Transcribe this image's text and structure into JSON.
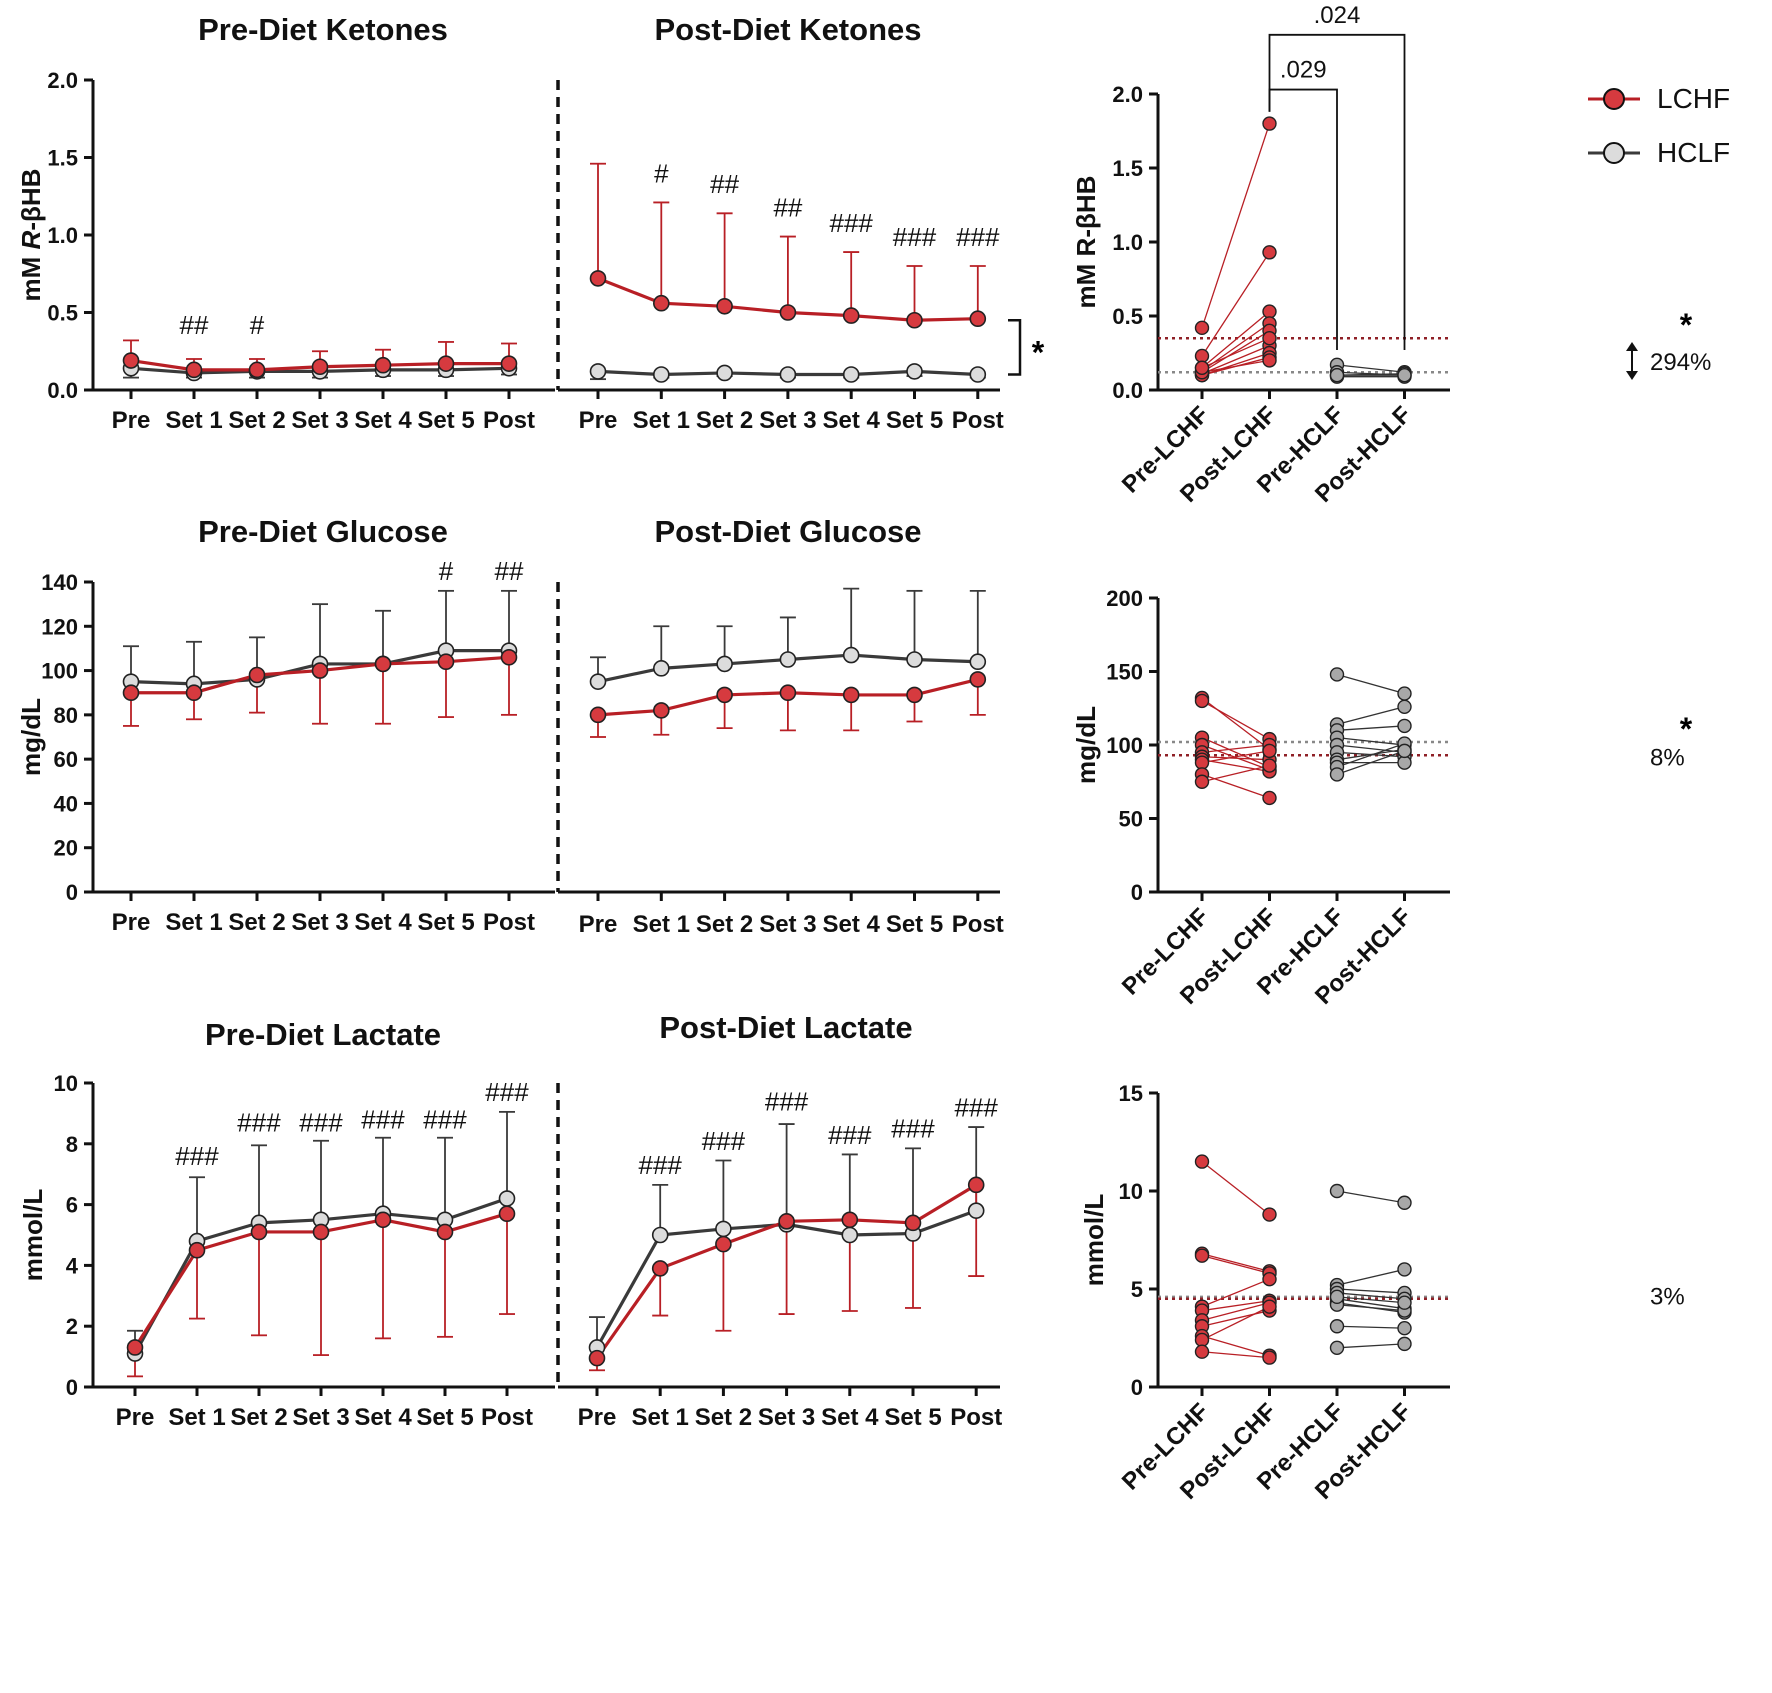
{
  "colors": {
    "lchf": "#d63a3f",
    "lchf_line": "#b81f25",
    "hclf": "#dcdcdc",
    "hclf_line": "#3a3a3a",
    "axis": "#111111"
  },
  "legend": {
    "lchf": "LCHF",
    "hclf": "HCLF"
  },
  "chart_data": [
    {
      "id": "pre_ketones",
      "type": "line",
      "title": "Pre-Diet Ketones",
      "ylabel_parts": [
        "mM ",
        "R",
        "-βHB"
      ],
      "ylim": [
        0,
        2.0
      ],
      "yticks": [
        0.0,
        0.5,
        1.0,
        1.5,
        2.0
      ],
      "yticklabels": [
        "0.0",
        "0.5",
        "1.0",
        "1.5",
        "2.0"
      ],
      "categories": [
        "Pre",
        "Set 1",
        "Set 2",
        "Set 3",
        "Set 4",
        "Set 5",
        "Post"
      ],
      "series": [
        {
          "name": "HCLF",
          "values": [
            0.14,
            0.11,
            0.12,
            0.12,
            0.13,
            0.13,
            0.14
          ],
          "err": [
            0.06,
            0.03,
            0.04,
            0.04,
            0.04,
            0.04,
            0.04
          ],
          "err_dir": "down"
        },
        {
          "name": "LCHF",
          "values": [
            0.19,
            0.13,
            0.13,
            0.15,
            0.16,
            0.17,
            0.17
          ],
          "err": [
            0.13,
            0.07,
            0.07,
            0.1,
            0.1,
            0.14,
            0.13
          ],
          "err_dir": "up"
        }
      ],
      "annotations": [
        {
          "cat": 1,
          "y": 0.36,
          "text": "##"
        },
        {
          "cat": 2,
          "y": 0.36,
          "text": "#"
        }
      ]
    },
    {
      "id": "post_ketones",
      "type": "line",
      "title": "Post-Diet Ketones",
      "ylim": [
        0,
        2.0
      ],
      "categories": [
        "Pre",
        "Set 1",
        "Set 2",
        "Set 3",
        "Set 4",
        "Set 5",
        "Post"
      ],
      "series": [
        {
          "name": "HCLF",
          "values": [
            0.12,
            0.1,
            0.11,
            0.1,
            0.1,
            0.12,
            0.1
          ],
          "err": [
            0.05,
            0.02,
            0.02,
            0.02,
            0.02,
            0.03,
            0.02
          ],
          "err_dir": "down"
        },
        {
          "name": "LCHF",
          "values": [
            0.72,
            0.56,
            0.54,
            0.5,
            0.48,
            0.45,
            0.46
          ],
          "err": [
            0.74,
            0.65,
            0.6,
            0.49,
            0.41,
            0.35,
            0.34
          ],
          "err_dir": "up"
        }
      ],
      "annotations": [
        {
          "cat": 1,
          "y": 1.34,
          "text": "#"
        },
        {
          "cat": 2,
          "y": 1.27,
          "text": "##"
        },
        {
          "cat": 3,
          "y": 1.12,
          "text": "##"
        },
        {
          "cat": 4,
          "y": 1.02,
          "text": "###"
        },
        {
          "cat": 5,
          "y": 0.93,
          "text": "###"
        },
        {
          "cat": 6,
          "y": 0.93,
          "text": "###"
        }
      ],
      "bracket": {
        "y1": 0.45,
        "y2": 0.1,
        "text": "*"
      }
    },
    {
      "id": "ketones_individual",
      "type": "scatter",
      "ylabel": "mM R-βHB",
      "ylim": [
        0,
        2.0
      ],
      "yticks": [
        0.0,
        0.5,
        1.0,
        1.5,
        2.0
      ],
      "yticklabels": [
        "0.0",
        "0.5",
        "1.0",
        "1.5",
        "2.0"
      ],
      "categories": [
        "Pre-LCHF",
        "Post-LCHF",
        "Pre-HCLF",
        "Post-HCLF"
      ],
      "pairs": [
        {
          "group": "LCHF",
          "pre": [
            0.42,
            0.23,
            0.15,
            0.13,
            0.12,
            0.11,
            0.1,
            0.1,
            0.12,
            0.15
          ],
          "post": [
            1.8,
            0.93,
            0.53,
            0.45,
            0.4,
            0.3,
            0.25,
            0.22,
            0.2,
            0.35
          ]
        },
        {
          "group": "HCLF",
          "pre": [
            0.17,
            0.12,
            0.1,
            0.09,
            0.1
          ],
          "post": [
            0.12,
            0.1,
            0.11,
            0.09,
            0.1
          ]
        }
      ],
      "mean_lines": [
        {
          "group": "LCHF",
          "y": 0.35
        },
        {
          "group": "HCLF",
          "y": 0.12
        }
      ],
      "sig_brackets": [
        {
          "from": 1,
          "to": 2,
          "y": 2.03,
          "label": ".029"
        },
        {
          "from": 1,
          "to": 3,
          "y": 2.4,
          "label": ".024"
        }
      ],
      "diff": {
        "star": "*",
        "text": "294%"
      }
    },
    {
      "id": "pre_glucose",
      "type": "line",
      "title": "Pre-Diet Glucose",
      "ylabel": "mg/dL",
      "ylim": [
        0,
        140
      ],
      "yticks": [
        0,
        20,
        40,
        60,
        80,
        100,
        120,
        140
      ],
      "yticklabels": [
        "0",
        "20",
        "40",
        "60",
        "80",
        "100",
        "120",
        "140"
      ],
      "categories": [
        "Pre",
        "Set 1",
        "Set 2",
        "Set 3",
        "Set 4",
        "Set 5",
        "Post"
      ],
      "series": [
        {
          "name": "HCLF",
          "values": [
            95,
            94,
            96,
            103,
            103,
            109,
            109
          ],
          "err": [
            16,
            19,
            19,
            27,
            24,
            27,
            27
          ],
          "err_dir": "up"
        },
        {
          "name": "LCHF",
          "values": [
            90,
            90,
            98,
            100,
            103,
            104,
            106
          ],
          "err": [
            15,
            12,
            17,
            24,
            27,
            25,
            26
          ],
          "err_dir": "down"
        }
      ],
      "annotations": [
        {
          "cat": 5,
          "y": 141,
          "text": "#"
        },
        {
          "cat": 6,
          "y": 141,
          "text": "##"
        }
      ]
    },
    {
      "id": "post_glucose",
      "type": "line",
      "title": "Post-Diet Glucose",
      "ylim": [
        0,
        140
      ],
      "categories": [
        "Pre",
        "Set 1",
        "Set 2",
        "Set 3",
        "Set 4",
        "Set 5",
        "Post"
      ],
      "series": [
        {
          "name": "HCLF",
          "values": [
            95,
            101,
            103,
            105,
            107,
            105,
            104
          ],
          "err": [
            11,
            19,
            17,
            19,
            30,
            31,
            32
          ],
          "err_dir": "up"
        },
        {
          "name": "LCHF",
          "values": [
            80,
            82,
            89,
            90,
            89,
            89,
            96
          ],
          "err": [
            10,
            11,
            15,
            17,
            16,
            12,
            16
          ],
          "err_dir": "down"
        }
      ]
    },
    {
      "id": "glucose_individual",
      "type": "scatter",
      "ylabel": "mg/dL",
      "ylim": [
        0,
        200
      ],
      "yticks": [
        0,
        50,
        100,
        150,
        200
      ],
      "yticklabels": [
        "0",
        "50",
        "100",
        "150",
        "200"
      ],
      "categories": [
        "Pre-LCHF",
        "Post-LCHF",
        "Pre-HCLF",
        "Post-HCLF"
      ],
      "pairs": [
        {
          "group": "LCHF",
          "pre": [
            132,
            130,
            105,
            100,
            95,
            92,
            90,
            88,
            80,
            75
          ],
          "post": [
            97,
            104,
            85,
            83,
            100,
            90,
            82,
            96,
            64,
            86
          ]
        },
        {
          "group": "HCLF",
          "pre": [
            148,
            114,
            110,
            105,
            100,
            95,
            90,
            88,
            85,
            80
          ],
          "post": [
            135,
            126,
            113,
            100,
            95,
            92,
            97,
            88,
            101,
            96
          ]
        }
      ],
      "mean_lines": [
        {
          "group": "HCLF",
          "y": 102
        },
        {
          "group": "LCHF",
          "y": 93
        }
      ],
      "diff": {
        "star": "*",
        "text": "8%"
      }
    },
    {
      "id": "pre_lactate",
      "type": "line",
      "title": "Pre-Diet Lactate",
      "ylabel": "mmol/L",
      "ylim": [
        0,
        10
      ],
      "yticks": [
        0,
        2,
        4,
        6,
        8,
        10
      ],
      "yticklabels": [
        "0",
        "2",
        "4",
        "6",
        "8",
        "10"
      ],
      "categories": [
        "Pre",
        "Set 1",
        "Set 2",
        "Set 3",
        "Set 4",
        "Set 5",
        "Post"
      ],
      "series": [
        {
          "name": "HCLF",
          "values": [
            1.1,
            4.8,
            5.4,
            5.5,
            5.7,
            5.5,
            6.2
          ],
          "err": [
            0.75,
            2.1,
            2.55,
            2.6,
            2.5,
            2.7,
            2.85
          ],
          "err_dir": "up"
        },
        {
          "name": "LCHF",
          "values": [
            1.3,
            4.5,
            5.1,
            5.1,
            5.5,
            5.1,
            5.7
          ],
          "err": [
            0.95,
            2.25,
            3.4,
            4.05,
            3.9,
            3.45,
            3.3
          ],
          "err_dir": "down"
        }
      ],
      "annotations": [
        {
          "cat": 1,
          "y": 7.3,
          "text": "###"
        },
        {
          "cat": 2,
          "y": 8.4,
          "text": "###"
        },
        {
          "cat": 3,
          "y": 8.4,
          "text": "###"
        },
        {
          "cat": 4,
          "y": 8.5,
          "text": "###"
        },
        {
          "cat": 5,
          "y": 8.5,
          "text": "###"
        },
        {
          "cat": 6,
          "y": 9.4,
          "text": "###"
        }
      ]
    },
    {
      "id": "post_lactate",
      "type": "line",
      "title": "Post-Diet Lactate",
      "ylim": [
        0,
        10
      ],
      "categories": [
        "Pre",
        "Set 1",
        "Set 2",
        "Set 3",
        "Set 4",
        "Set 5",
        "Post"
      ],
      "series": [
        {
          "name": "HCLF",
          "values": [
            1.3,
            5.0,
            5.2,
            5.35,
            5.0,
            5.05,
            5.8
          ],
          "err": [
            1.0,
            1.65,
            2.25,
            3.3,
            2.65,
            2.8,
            2.75
          ],
          "err_dir": "up"
        },
        {
          "name": "LCHF",
          "values": [
            0.95,
            3.9,
            4.7,
            5.45,
            5.5,
            5.4,
            6.65
          ],
          "err": [
            0.4,
            1.55,
            2.85,
            3.05,
            3.0,
            2.8,
            3.0
          ],
          "err_dir": "down"
        }
      ],
      "annotations": [
        {
          "cat": 1,
          "y": 7.0,
          "text": "###"
        },
        {
          "cat": 2,
          "y": 7.8,
          "text": "###"
        },
        {
          "cat": 3,
          "y": 9.1,
          "text": "###"
        },
        {
          "cat": 4,
          "y": 8.0,
          "text": "###"
        },
        {
          "cat": 5,
          "y": 8.2,
          "text": "###"
        },
        {
          "cat": 6,
          "y": 8.9,
          "text": "###"
        }
      ]
    },
    {
      "id": "lactate_individual",
      "type": "scatter",
      "ylabel": "mmol/L",
      "ylim": [
        0,
        15
      ],
      "yticks": [
        0,
        5,
        10,
        15
      ],
      "yticklabels": [
        "0",
        "5",
        "10",
        "15"
      ],
      "categories": [
        "Pre-LCHF",
        "Post-LCHF",
        "Pre-HCLF",
        "Post-HCLF"
      ],
      "pairs": [
        {
          "group": "LCHF",
          "pre": [
            11.5,
            6.8,
            6.7,
            4.1,
            3.9,
            3.4,
            3.1,
            2.6,
            2.4,
            1.8
          ],
          "post": [
            8.8,
            5.9,
            5.8,
            5.5,
            4.4,
            4.3,
            3.9,
            1.6,
            4.1,
            1.5
          ]
        },
        {
          "group": "HCLF",
          "pre": [
            10.0,
            5.2,
            5.0,
            4.8,
            4.5,
            4.3,
            4.2,
            3.1,
            2.0,
            4.6
          ],
          "post": [
            9.4,
            6.0,
            4.8,
            4.5,
            4.0,
            3.8,
            3.9,
            3.0,
            2.2,
            4.3
          ]
        }
      ],
      "mean_lines": [
        {
          "group": "HCLF",
          "y": 4.6
        },
        {
          "group": "LCHF",
          "y": 4.5
        }
      ],
      "diff": {
        "star": "",
        "text": "3%"
      }
    }
  ]
}
